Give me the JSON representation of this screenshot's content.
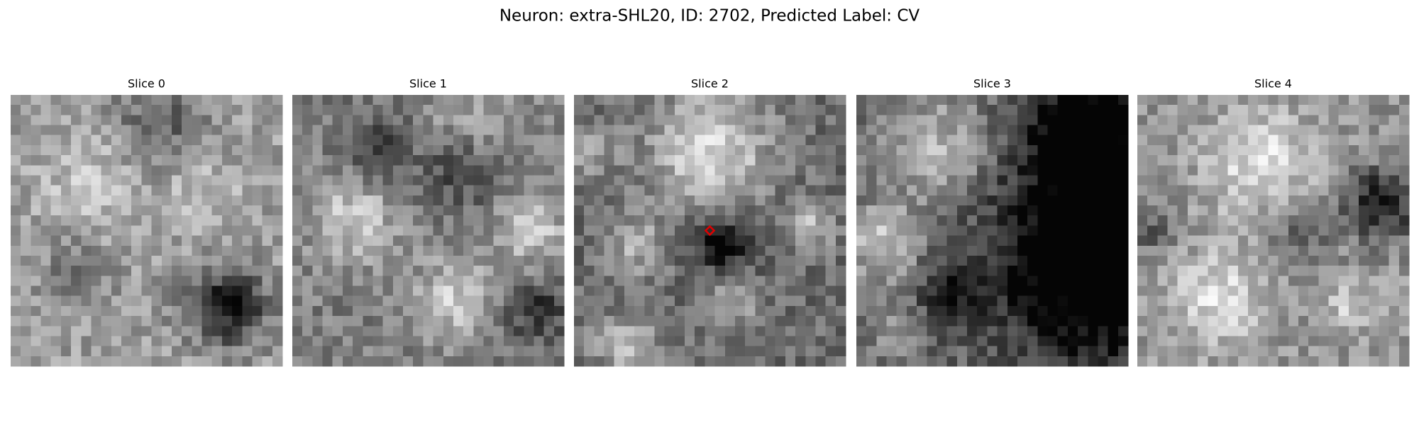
{
  "title": "Neuron: extra-SHL20, ID: 2702, Predicted Label: CV",
  "panels": [
    {
      "title": "Slice 0"
    },
    {
      "title": "Slice 1"
    },
    {
      "title": "Slice 2"
    },
    {
      "title": "Slice 3"
    },
    {
      "title": "Slice 4"
    }
  ]
}
